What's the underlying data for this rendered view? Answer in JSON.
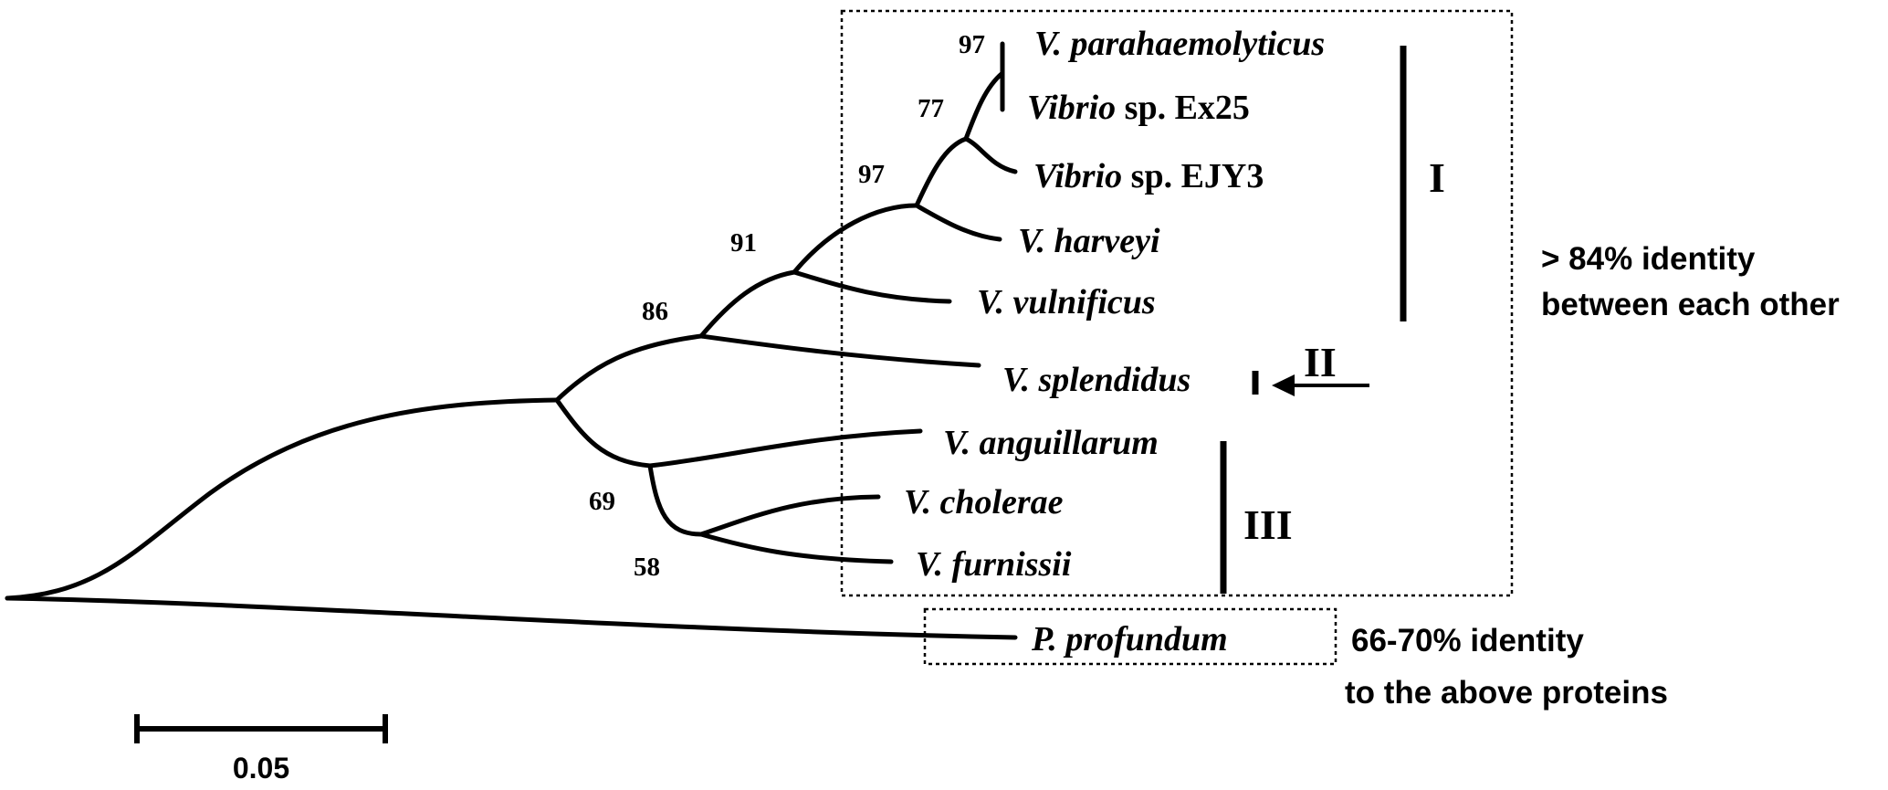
{
  "taxa": {
    "parahaemolyticus": {
      "italic": "V. parahaemolyticus",
      "plain": ""
    },
    "ex25": {
      "italic": "Vibrio",
      "plain": " sp. Ex25"
    },
    "ejy3": {
      "italic": "Vibrio",
      "plain": " sp. EJY3"
    },
    "harveyi": {
      "italic": "V. harveyi",
      "plain": ""
    },
    "vulnificus": {
      "italic": "V. vulnificus",
      "plain": ""
    },
    "splendidus": {
      "italic": "V. splendidus",
      "plain": ""
    },
    "anguillarum": {
      "italic": "V. anguillarum",
      "plain": ""
    },
    "cholerae": {
      "italic": "V. cholerae",
      "plain": ""
    },
    "furnissii": {
      "italic": "V. furnissii",
      "plain": ""
    },
    "profundum": {
      "italic": "P. profundum",
      "plain": ""
    }
  },
  "bootstrap": {
    "para_ex25": "97",
    "ejy3": "77",
    "harveyi": "97",
    "vulnificus": "91",
    "splendidus": "86",
    "group3": "69",
    "cholerae_furnissii": "58"
  },
  "groups": {
    "I": "I",
    "II": "II",
    "III": "III"
  },
  "annotations": {
    "vibrio_identity_line1": "> 84% identity",
    "vibrio_identity_line2": "between each other",
    "outgroup_identity_line1": "66-70% identity",
    "outgroup_identity_line2": "to the above proteins"
  },
  "scale_bar": {
    "label": "0.05",
    "value": 0.05
  }
}
